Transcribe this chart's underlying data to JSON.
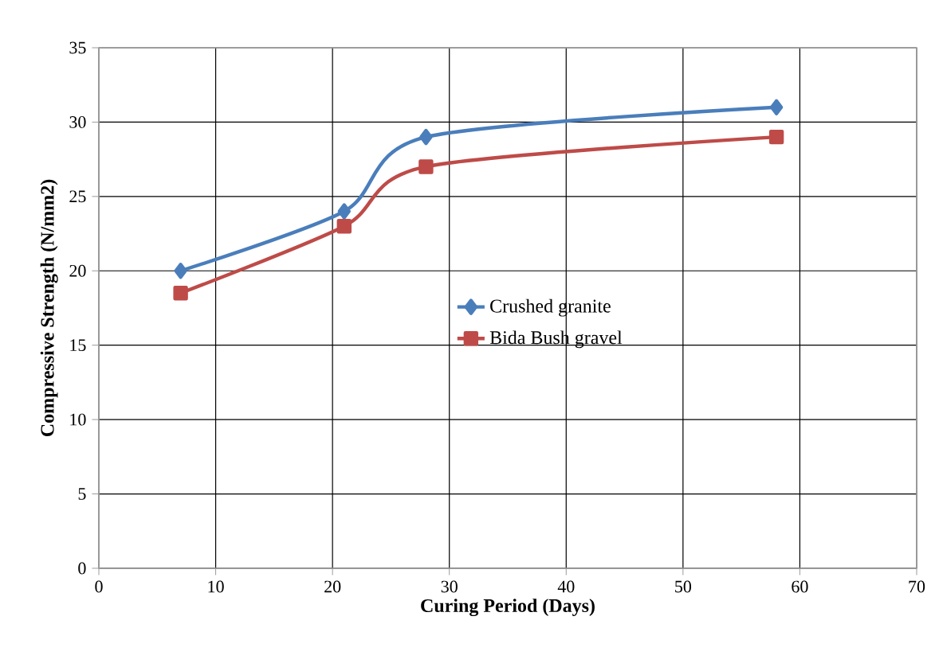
{
  "chart_data": {
    "type": "line",
    "xlabel": "Curing Period (Days)",
    "ylabel": "Compressive Strength (N/mm2)",
    "x": [
      7,
      21,
      28,
      58
    ],
    "series": [
      {
        "name": "Crushed granite",
        "color": "#4a7ebb",
        "marker": "diamond",
        "values": [
          20,
          24,
          29,
          31
        ]
      },
      {
        "name": "Bida Bush gravel",
        "color": "#be4b48",
        "marker": "square",
        "values": [
          18.5,
          23,
          27,
          29
        ]
      }
    ],
    "xlim": [
      0,
      70
    ],
    "xticks": [
      0,
      10,
      20,
      30,
      40,
      50,
      60,
      70
    ],
    "ylim": [
      0,
      35
    ],
    "yticks": [
      0,
      5,
      10,
      15,
      20,
      25,
      30,
      35
    ],
    "grid": true,
    "legend": "center",
    "line_style": "solid"
  }
}
